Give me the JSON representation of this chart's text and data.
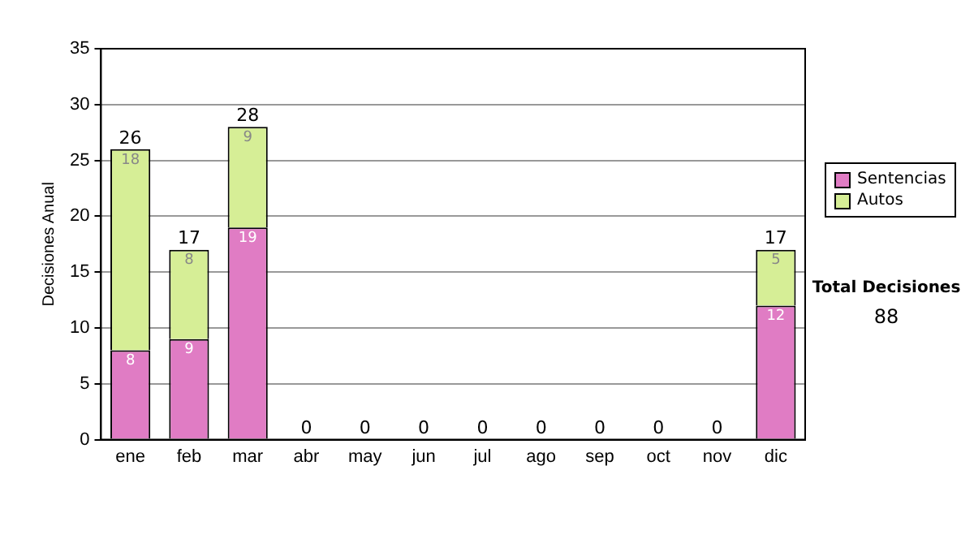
{
  "chart_data": {
    "type": "bar",
    "stacked": true,
    "ylabel": "Decisiones Anual",
    "categories": [
      "ene",
      "feb",
      "mar",
      "abr",
      "may",
      "jun",
      "jul",
      "ago",
      "sep",
      "oct",
      "nov",
      "dic"
    ],
    "series": [
      {
        "name": "Sentencias",
        "color": "#e07cc4",
        "values": [
          8,
          9,
          19,
          0,
          0,
          0,
          0,
          0,
          0,
          0,
          0,
          12
        ],
        "value_labels": [
          "8",
          "9",
          "19",
          null,
          null,
          null,
          null,
          null,
          null,
          null,
          null,
          "12"
        ]
      },
      {
        "name": "Autos",
        "color": "#d6ee96",
        "values": [
          18,
          8,
          9,
          0,
          0,
          0,
          0,
          0,
          0,
          0,
          0,
          5
        ],
        "value_labels": [
          "18",
          "8",
          "9",
          null,
          null,
          null,
          null,
          null,
          null,
          null,
          null,
          "5"
        ]
      }
    ],
    "totals": [
      "26",
      "17",
      "28",
      "0",
      "0",
      "0",
      "0",
      "0",
      "0",
      "0",
      "0",
      "17"
    ],
    "ylim": [
      0,
      35
    ],
    "yticks": [
      0,
      5,
      10,
      15,
      20,
      25,
      30,
      35
    ],
    "grid": "y",
    "legend": "right",
    "annotations": [
      "Total Decisiones",
      "88"
    ]
  }
}
